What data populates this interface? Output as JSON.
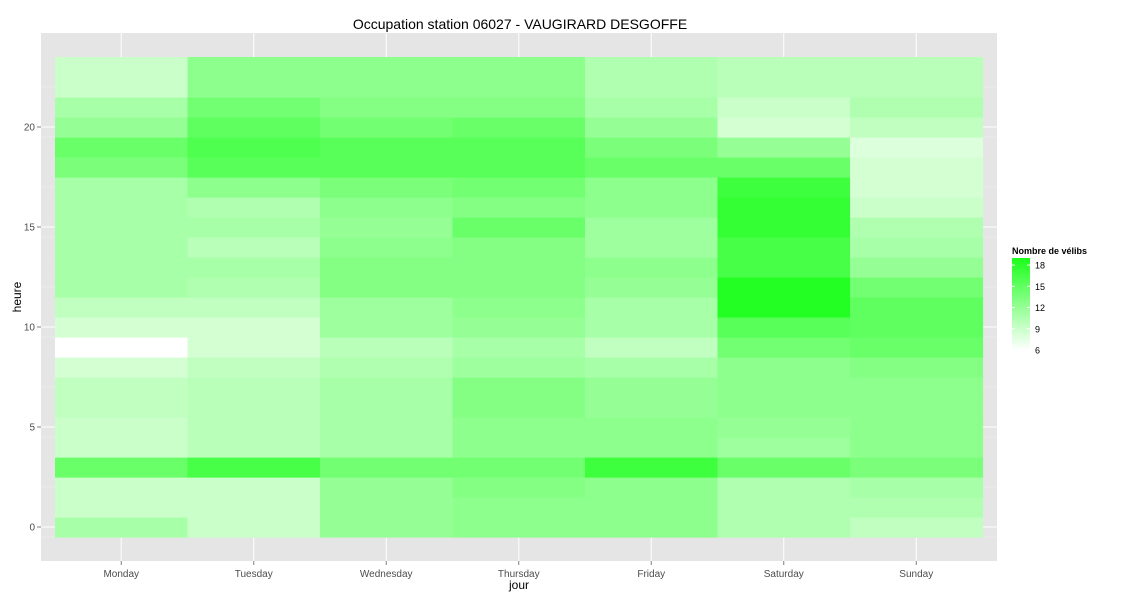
{
  "chart_data": {
    "type": "heatmap",
    "title": "Occupation station 06027 - VAUGIRARD DESGOFFE",
    "xlabel": "jour",
    "ylabel": "heure",
    "x_categories": [
      "Monday",
      "Tuesday",
      "Wednesday",
      "Thursday",
      "Friday",
      "Saturday",
      "Sunday"
    ],
    "y_hours": [
      0,
      1,
      2,
      3,
      4,
      5,
      6,
      7,
      8,
      9,
      10,
      11,
      12,
      13,
      14,
      15,
      16,
      17,
      18,
      19,
      20,
      21,
      22,
      23
    ],
    "y_ticks": [
      0,
      5,
      10,
      15,
      20
    ],
    "ylim": [
      -0.5,
      23.5
    ],
    "values_by_day": [
      [
        11.0,
        9.0,
        9.0,
        14.5,
        9.0,
        9.0,
        9.5,
        9.5,
        8.5,
        6.0,
        8.5,
        9.5,
        11.0,
        11.0,
        11.0,
        11.0,
        11.0,
        11.0,
        13.5,
        14.5,
        12.0,
        11.0,
        9.0,
        9.0
      ],
      [
        9.0,
        9.0,
        9.0,
        16.5,
        10.0,
        10.0,
        10.0,
        10.0,
        9.5,
        8.5,
        8.5,
        9.5,
        10.5,
        11.0,
        10.0,
        11.0,
        10.5,
        12.5,
        15.5,
        16.0,
        15.0,
        14.0,
        12.5,
        12.5
      ],
      [
        12.0,
        12.0,
        12.0,
        14.0,
        11.0,
        11.0,
        11.0,
        11.0,
        10.5,
        10.0,
        11.5,
        11.5,
        13.0,
        13.0,
        12.5,
        12.0,
        12.5,
        13.5,
        15.5,
        15.5,
        14.0,
        13.0,
        12.5,
        12.5
      ],
      [
        12.5,
        12.5,
        13.0,
        14.0,
        12.5,
        12.5,
        13.0,
        13.0,
        11.5,
        11.0,
        12.0,
        12.5,
        13.0,
        13.0,
        13.0,
        14.5,
        13.0,
        14.0,
        15.5,
        15.5,
        14.5,
        13.0,
        12.5,
        12.5
      ],
      [
        12.5,
        12.5,
        12.5,
        17.0,
        12.5,
        12.5,
        12.0,
        12.0,
        11.0,
        9.5,
        11.0,
        11.0,
        12.0,
        12.5,
        11.5,
        11.5,
        12.5,
        12.5,
        14.5,
        13.5,
        12.0,
        11.0,
        10.5,
        10.5
      ],
      [
        10.5,
        10.5,
        10.5,
        14.5,
        11.5,
        12.0,
        12.5,
        12.5,
        12.5,
        14.0,
        15.5,
        18.5,
        18.5,
        16.5,
        16.5,
        17.5,
        17.5,
        17.0,
        14.5,
        12.0,
        8.5,
        9.0,
        10.0,
        10.0
      ],
      [
        9.5,
        10.5,
        11.0,
        13.5,
        12.5,
        12.5,
        12.5,
        12.5,
        13.0,
        14.5,
        15.0,
        15.0,
        14.0,
        12.0,
        11.0,
        10.5,
        9.0,
        8.5,
        8.5,
        8.0,
        9.5,
        10.5,
        10.0,
        10.0
      ]
    ],
    "color_scale": {
      "low_color": "#ffffff",
      "high_color": "#1aff1a",
      "min": 6,
      "max": 19
    },
    "legend": {
      "title": "Nombre de vélibs",
      "ticks": [
        18,
        15,
        12,
        9,
        6
      ],
      "position": "right"
    },
    "grid": true,
    "panel_background": "#e5e5e5"
  }
}
